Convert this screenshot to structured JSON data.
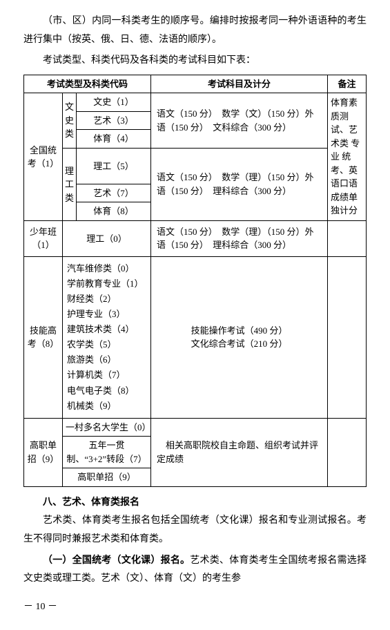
{
  "intro": {
    "p1": "（市、区）内同一科类考生的顺序号。编排时按报考同一种外语语种的考生进行集中（按英、俄、日、德、法语的顺序）。",
    "p2": "考试类型、科类代码及各科类的考试科目如下表："
  },
  "table": {
    "head": {
      "c1": "考试类型及科类代码",
      "c2": "考试科目及计分",
      "c3": "备注"
    },
    "group1": {
      "label": "全国统考（1）",
      "wen_label": "文史类",
      "li_label": "理工类",
      "wen_rows": [
        "文史（1）",
        "艺术（3）",
        "体育（4）"
      ],
      "li_rows": [
        "理工（5）",
        "艺术（7）",
        "体育（8）"
      ],
      "wen_subjects": "语文（150 分）　数学（文）（150 分）外语（150 分）　文科综合（300 分）",
      "li_subjects": "语文（150 分）　数学（理）（150 分）外语（150 分）　理科综合（300 分）",
      "note": "体育素质测试、艺术类 专 业 统考、英语口语成绩单独计分"
    },
    "group2": {
      "label": "少年班（1）",
      "category": "理工（0）",
      "subjects": "语文（150 分）　数学（理）（150 分）外语（150 分）　理科综合（300 分）"
    },
    "group3": {
      "label": "技能高考（8）",
      "list": "汽车维修类（0）\n学前教育专业（1）\n财经类（2）\n护理专业（3）\n建筑技术类（4）\n农学类（5）\n旅游类（6）\n计算机类（7）\n电气电子类（8）\n机械类（9）",
      "subjects": "技能操作考试（490 分）\n文化综合考试（210 分）"
    },
    "group4": {
      "label": "高职单招（9）",
      "r1": "一村多名大学生（0）",
      "r2": "五年一贯制、“3+2”转段（7）",
      "r3": "高职单招（9）",
      "subjects": "　相关高职院校自主命题、组织考试并评定成绩"
    }
  },
  "section": {
    "head": "八、艺术、体育类报名",
    "p1": "艺术类、体育类考生报名包括全国统考（文化课）报名和专业测试报名。考生不得同时兼报艺术类和体育类。",
    "p2a": "（一）全国统考（文化课）报名。",
    "p2b": "艺术类、体育类考生全国统考报名需选择文史类或理工类。艺术（文）、体育（文）的考生参"
  },
  "pagenum": "－ 10 －"
}
